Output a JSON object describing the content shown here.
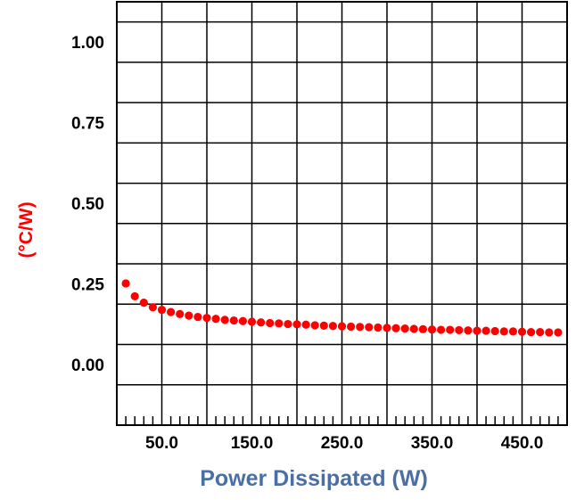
{
  "chart_data": {
    "type": "scatter",
    "xlabel": "Power Dissipated (W)",
    "ylabel": "(°C/W)",
    "xlim": [
      0,
      500
    ],
    "ylim": [
      -0.1875,
      1.125
    ],
    "x_tick_labels": [
      "50.0",
      "150.0",
      "250.0",
      "350.0",
      "450.0"
    ],
    "x_tick_values": [
      50,
      150,
      250,
      350,
      450
    ],
    "y_tick_labels": [
      "1.00",
      "0.75",
      "0.50",
      "0.25",
      "0.00"
    ],
    "y_tick_values": [
      1.0,
      0.75,
      0.5,
      0.25,
      0.0
    ],
    "grid": true,
    "colors": {
      "series": "#ff0000",
      "xlabel": "#4a6fa5",
      "ylabel": "#ff0000",
      "grid": "#000000"
    },
    "series": [
      {
        "x": [
          10,
          20,
          30,
          40,
          50,
          60,
          70,
          80,
          90,
          100,
          110,
          120,
          130,
          140,
          150,
          160,
          170,
          180,
          190,
          200,
          210,
          220,
          230,
          240,
          250,
          260,
          270,
          280,
          290,
          300,
          310,
          320,
          330,
          340,
          350,
          360,
          370,
          380,
          390,
          400,
          410,
          420,
          430,
          440,
          450,
          460,
          470,
          480,
          490
        ],
        "y": [
          0.252,
          0.212,
          0.192,
          0.178,
          0.17,
          0.163,
          0.157,
          0.152,
          0.148,
          0.145,
          0.142,
          0.139,
          0.137,
          0.135,
          0.133,
          0.131,
          0.129,
          0.128,
          0.126,
          0.125,
          0.124,
          0.122,
          0.121,
          0.12,
          0.119,
          0.118,
          0.117,
          0.116,
          0.115,
          0.114,
          0.113,
          0.112,
          0.111,
          0.11,
          0.109,
          0.108,
          0.108,
          0.107,
          0.106,
          0.105,
          0.105,
          0.104,
          0.103,
          0.103,
          0.102,
          0.101,
          0.101,
          0.1,
          0.1
        ]
      }
    ]
  }
}
